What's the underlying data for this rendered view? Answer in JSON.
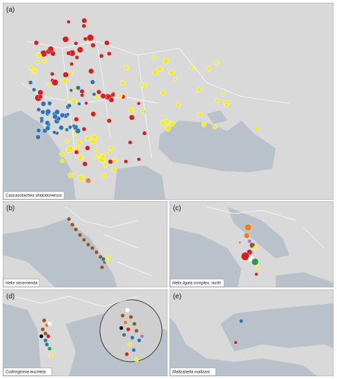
{
  "panels": [
    {
      "label": "(a)",
      "species": "Caucasotachea vindobonensis"
    },
    {
      "label": "(b)",
      "species": "Helix secernenda"
    },
    {
      "label": "(c)",
      "species": "Helix ligata complex, north"
    },
    {
      "label": "(d)",
      "species": "Codringtonia eucineta"
    },
    {
      "label": "(e)",
      "species": "Maltzanella maltzani"
    }
  ]
}
